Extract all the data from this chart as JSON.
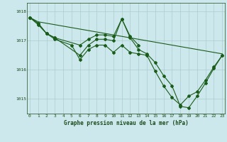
{
  "title": "Graphe pression niveau de la mer (hPa)",
  "background_color": "#cce8ec",
  "grid_color": "#aacccc",
  "line_color": "#1a5c1a",
  "text_color": "#1a4a1a",
  "ylim": [
    1014.5,
    1018.3
  ],
  "yticks": [
    1015,
    1016,
    1017,
    1018
  ],
  "xlim": [
    -0.3,
    23.3
  ],
  "xticks": [
    0,
    1,
    2,
    3,
    4,
    5,
    6,
    7,
    8,
    9,
    10,
    11,
    12,
    13,
    14,
    15,
    16,
    17,
    18,
    19,
    20,
    21,
    22,
    23
  ],
  "series": [
    {
      "x": [
        0,
        1,
        23
      ],
      "y": [
        1017.8,
        1017.65,
        1016.55
      ],
      "has_markers": false
    },
    {
      "x": [
        0,
        1,
        2,
        3,
        6,
        7,
        8,
        9,
        10,
        11,
        12,
        13
      ],
      "y": [
        1017.8,
        1017.6,
        1017.25,
        1017.1,
        1016.85,
        1017.05,
        1017.2,
        1017.2,
        1017.15,
        1017.75,
        1017.15,
        1016.85
      ],
      "has_markers": true
    },
    {
      "x": [
        0,
        1,
        2,
        3,
        6,
        7,
        8,
        9,
        10,
        11,
        12,
        13,
        14,
        15,
        16,
        17,
        18,
        19,
        20,
        21,
        22,
        23
      ],
      "y": [
        1017.8,
        1017.6,
        1017.25,
        1017.1,
        1016.5,
        1016.85,
        1017.05,
        1017.05,
        1017.0,
        1017.75,
        1017.1,
        1016.7,
        1016.55,
        1016.25,
        1015.8,
        1015.45,
        1014.75,
        1014.7,
        1015.1,
        1015.55,
        1016.05,
        1016.5
      ],
      "has_markers": true
    },
    {
      "x": [
        0,
        1,
        2,
        3,
        5,
        6,
        7,
        8,
        9,
        10,
        11,
        12,
        13,
        14,
        15,
        16,
        17,
        18,
        19,
        20,
        21,
        22,
        23
      ],
      "y": [
        1017.8,
        1017.55,
        1017.25,
        1017.05,
        1016.85,
        1016.35,
        1016.7,
        1016.85,
        1016.85,
        1016.6,
        1016.85,
        1016.6,
        1016.55,
        1016.5,
        1015.95,
        1015.45,
        1015.05,
        1014.8,
        1015.1,
        1015.25,
        1015.65,
        1016.1,
        1016.5
      ],
      "has_markers": true
    }
  ]
}
